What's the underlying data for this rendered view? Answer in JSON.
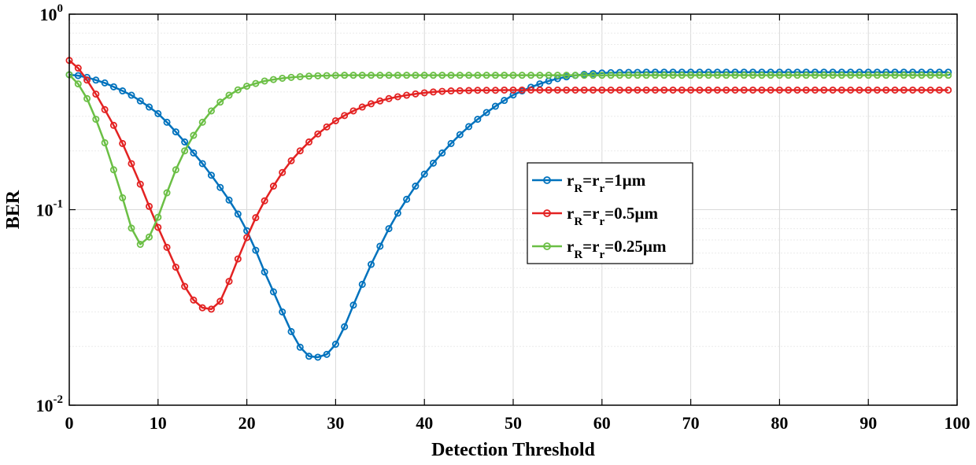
{
  "chart_data": {
    "type": "line",
    "title": "",
    "xlabel": "Detection Threshold",
    "ylabel": "BER",
    "xlim": [
      0,
      100
    ],
    "ylim": [
      0.01,
      1
    ],
    "yscale": "log",
    "grid": true,
    "x_ticks": [
      0,
      10,
      20,
      30,
      40,
      50,
      60,
      70,
      80,
      90,
      100
    ],
    "y_ticks": [
      {
        "value": 0.01,
        "base": "10",
        "exp": "-2"
      },
      {
        "value": 0.1,
        "base": "10",
        "exp": "-1"
      },
      {
        "value": 1,
        "base": "10",
        "exp": "0"
      }
    ],
    "legend_position": "right-center",
    "series": [
      {
        "name": "rR=rr=1µm",
        "legend": {
          "r1": "r",
          "s1": "R",
          "eq1": "=",
          "r2": "r",
          "s2": "r",
          "rest": "=1µm"
        },
        "color": "#0072BD",
        "x": [
          0,
          1,
          2,
          3,
          4,
          5,
          6,
          7,
          8,
          9,
          10,
          11,
          12,
          13,
          14,
          15,
          16,
          17,
          18,
          19,
          20,
          21,
          22,
          23,
          24,
          25,
          26,
          27,
          28,
          29,
          30,
          31,
          32,
          33,
          34,
          35,
          36,
          37,
          38,
          39,
          40,
          41,
          42,
          43,
          44,
          45,
          46,
          47,
          48,
          49,
          50,
          51,
          52,
          53,
          54,
          55,
          56,
          57,
          58,
          59,
          60,
          61,
          62,
          63,
          64,
          65,
          66,
          67,
          68,
          69,
          70,
          71,
          72,
          73,
          74,
          75,
          76,
          77,
          78,
          79,
          80,
          81,
          82,
          83,
          84,
          85,
          86,
          87,
          88,
          89,
          90,
          91,
          92,
          93,
          94,
          95,
          96,
          97,
          98,
          99
        ],
        "values": [
          0.49,
          0.485,
          0.475,
          0.46,
          0.445,
          0.425,
          0.405,
          0.385,
          0.36,
          0.335,
          0.31,
          0.28,
          0.25,
          0.222,
          0.195,
          0.172,
          0.15,
          0.13,
          0.112,
          0.095,
          0.078,
          0.062,
          0.048,
          0.038,
          0.03,
          0.0238,
          0.0198,
          0.0178,
          0.0176,
          0.0182,
          0.0205,
          0.0252,
          0.0325,
          0.0415,
          0.0525,
          0.065,
          0.08,
          0.096,
          0.113,
          0.132,
          0.152,
          0.173,
          0.195,
          0.218,
          0.242,
          0.266,
          0.29,
          0.314,
          0.338,
          0.362,
          0.386,
          0.405,
          0.423,
          0.44,
          0.455,
          0.468,
          0.478,
          0.486,
          0.492,
          0.497,
          0.5,
          0.502,
          0.503,
          0.504,
          0.504,
          0.505,
          0.505,
          0.505,
          0.505,
          0.505,
          0.505,
          0.505,
          0.505,
          0.505,
          0.505,
          0.505,
          0.505,
          0.505,
          0.505,
          0.505,
          0.505,
          0.505,
          0.505,
          0.505,
          0.505,
          0.505,
          0.505,
          0.505,
          0.505,
          0.505,
          0.505,
          0.505,
          0.505,
          0.505,
          0.505,
          0.505,
          0.505,
          0.505,
          0.505,
          0.505
        ]
      },
      {
        "name": "rR=rr=0.5µm",
        "legend": {
          "r1": "r",
          "s1": "R",
          "eq1": "=",
          "r2": "r",
          "s2": "r",
          "rest": "=0.5µm"
        },
        "color": "#E32222",
        "x": [
          0,
          1,
          2,
          3,
          4,
          5,
          6,
          7,
          8,
          9,
          10,
          11,
          12,
          13,
          14,
          15,
          16,
          17,
          18,
          19,
          20,
          21,
          22,
          23,
          24,
          25,
          26,
          27,
          28,
          29,
          30,
          31,
          32,
          33,
          34,
          35,
          36,
          37,
          38,
          39,
          40,
          41,
          42,
          43,
          44,
          45,
          46,
          47,
          48,
          49,
          50,
          51,
          52,
          53,
          54,
          55,
          56,
          57,
          58,
          59,
          60,
          61,
          62,
          63,
          64,
          65,
          66,
          67,
          68,
          69,
          70,
          71,
          72,
          73,
          74,
          75,
          76,
          77,
          78,
          79,
          80,
          81,
          82,
          83,
          84,
          85,
          86,
          87,
          88,
          89,
          90,
          91,
          92,
          93,
          94,
          95,
          96,
          97,
          98,
          99
        ],
        "values": [
          0.58,
          0.53,
          0.46,
          0.39,
          0.325,
          0.27,
          0.218,
          0.172,
          0.135,
          0.104,
          0.0812,
          0.0642,
          0.0508,
          0.0405,
          0.0345,
          0.0315,
          0.031,
          0.034,
          0.043,
          0.056,
          0.072,
          0.091,
          0.111,
          0.132,
          0.155,
          0.178,
          0.2,
          0.222,
          0.244,
          0.265,
          0.285,
          0.303,
          0.32,
          0.335,
          0.348,
          0.36,
          0.37,
          0.378,
          0.385,
          0.391,
          0.396,
          0.4,
          0.403,
          0.405,
          0.406,
          0.407,
          0.408,
          0.408,
          0.408,
          0.409,
          0.409,
          0.409,
          0.409,
          0.409,
          0.409,
          0.409,
          0.409,
          0.409,
          0.409,
          0.409,
          0.409,
          0.409,
          0.409,
          0.409,
          0.409,
          0.409,
          0.409,
          0.409,
          0.409,
          0.409,
          0.409,
          0.409,
          0.409,
          0.409,
          0.409,
          0.409,
          0.409,
          0.409,
          0.409,
          0.409,
          0.409,
          0.409,
          0.409,
          0.409,
          0.409,
          0.409,
          0.409,
          0.409,
          0.409,
          0.409,
          0.409,
          0.409,
          0.409,
          0.409,
          0.409,
          0.409,
          0.409,
          0.409,
          0.409,
          0.409
        ]
      },
      {
        "name": "rR=rr=0.25µm",
        "legend": {
          "r1": "r",
          "s1": "R",
          "eq1": "=",
          "r2": "r",
          "s2": "r",
          "rest": "=0.25µm"
        },
        "color": "#6BBF45",
        "x": [
          0,
          1,
          2,
          3,
          4,
          5,
          6,
          7,
          8,
          9,
          10,
          11,
          12,
          13,
          14,
          15,
          16,
          17,
          18,
          19,
          20,
          21,
          22,
          23,
          24,
          25,
          26,
          27,
          28,
          29,
          30,
          31,
          32,
          33,
          34,
          35,
          36,
          37,
          38,
          39,
          40,
          41,
          42,
          43,
          44,
          45,
          46,
          47,
          48,
          49,
          50,
          51,
          52,
          53,
          54,
          55,
          56,
          57,
          58,
          59,
          60,
          61,
          62,
          63,
          64,
          65,
          66,
          67,
          68,
          69,
          70,
          71,
          72,
          73,
          74,
          75,
          76,
          77,
          78,
          79,
          80,
          81,
          82,
          83,
          84,
          85,
          86,
          87,
          88,
          89,
          90,
          91,
          92,
          93,
          94,
          95,
          96,
          97,
          98,
          99
        ],
        "values": [
          0.49,
          0.44,
          0.37,
          0.29,
          0.22,
          0.16,
          0.115,
          0.0805,
          0.0665,
          0.0725,
          0.0915,
          0.122,
          0.16,
          0.2,
          0.24,
          0.28,
          0.32,
          0.355,
          0.385,
          0.41,
          0.428,
          0.442,
          0.455,
          0.463,
          0.47,
          0.475,
          0.479,
          0.482,
          0.484,
          0.485,
          0.486,
          0.487,
          0.487,
          0.487,
          0.487,
          0.487,
          0.487,
          0.487,
          0.487,
          0.487,
          0.487,
          0.487,
          0.487,
          0.487,
          0.487,
          0.487,
          0.487,
          0.487,
          0.487,
          0.487,
          0.487,
          0.487,
          0.487,
          0.487,
          0.487,
          0.487,
          0.487,
          0.487,
          0.487,
          0.487,
          0.487,
          0.487,
          0.487,
          0.487,
          0.487,
          0.487,
          0.487,
          0.487,
          0.487,
          0.487,
          0.487,
          0.487,
          0.487,
          0.487,
          0.487,
          0.487,
          0.487,
          0.487,
          0.487,
          0.487,
          0.487,
          0.487,
          0.487,
          0.487,
          0.487,
          0.487,
          0.487,
          0.487,
          0.487,
          0.487,
          0.487,
          0.487,
          0.487,
          0.487,
          0.487,
          0.487,
          0.487,
          0.487,
          0.487,
          0.487
        ]
      }
    ]
  }
}
